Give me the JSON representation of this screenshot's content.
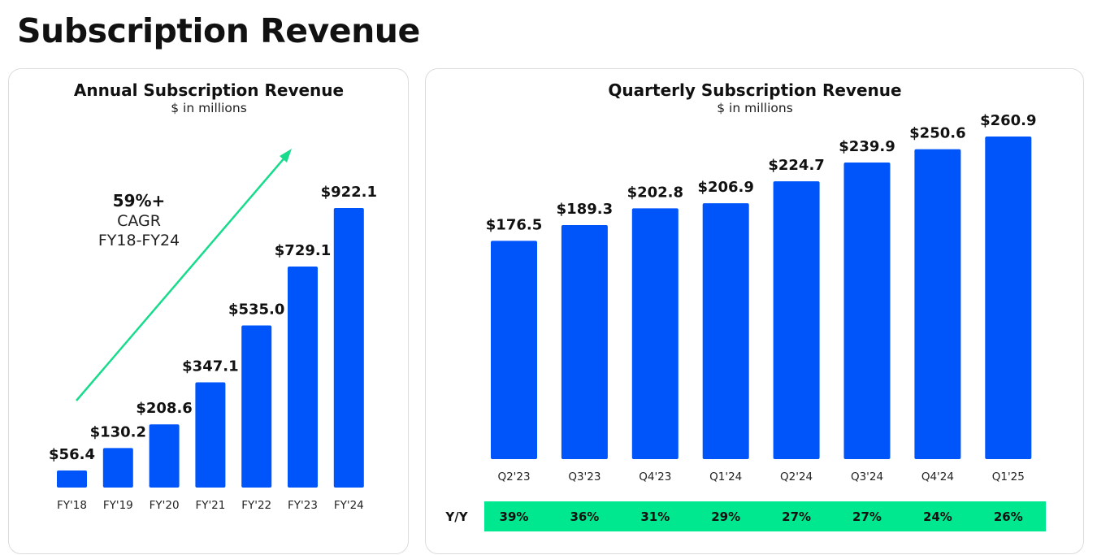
{
  "page": {
    "title": "Subscription Revenue"
  },
  "colors": {
    "bar": "#0055fa",
    "growth": "#00e88f",
    "arrow": "#18dc8c"
  },
  "chart_data": [
    {
      "type": "bar",
      "title": "Annual Subscription Revenue",
      "subtitle": "$ in millions",
      "categories": [
        "FY'18",
        "FY'19",
        "FY'20",
        "FY'21",
        "FY'22",
        "FY'23",
        "FY'24"
      ],
      "values": [
        56.4,
        130.2,
        208.6,
        347.1,
        535.0,
        729.1,
        922.1
      ],
      "value_labels": [
        "$56.4",
        "$130.2",
        "$208.6",
        "$347.1",
        "$535.0",
        "$729.1",
        "$922.1"
      ],
      "ylim": [
        0,
        1000
      ],
      "grid": false,
      "annotation": {
        "headline": "59%+",
        "line1": "CAGR",
        "line2": "FY18-FY24"
      }
    },
    {
      "type": "bar",
      "title": "Quarterly Subscription Revenue",
      "subtitle": "$ in millions",
      "categories": [
        "Q2'23",
        "Q3'23",
        "Q4'23",
        "Q1'24",
        "Q2'24",
        "Q3'24",
        "Q4'24",
        "Q1'25"
      ],
      "values": [
        176.5,
        189.3,
        202.8,
        206.9,
        224.7,
        239.9,
        250.6,
        260.9
      ],
      "value_labels": [
        "$176.5",
        "$189.3",
        "$202.8",
        "$206.9",
        "$224.7",
        "$239.9",
        "$250.6",
        "$260.9"
      ],
      "ylim": [
        0,
        260.9
      ],
      "grid": false,
      "yoy_label": "Y/Y",
      "yoy_values": [
        "39%",
        "36%",
        "31%",
        "29%",
        "27%",
        "27%",
        "24%",
        "26%"
      ]
    }
  ]
}
